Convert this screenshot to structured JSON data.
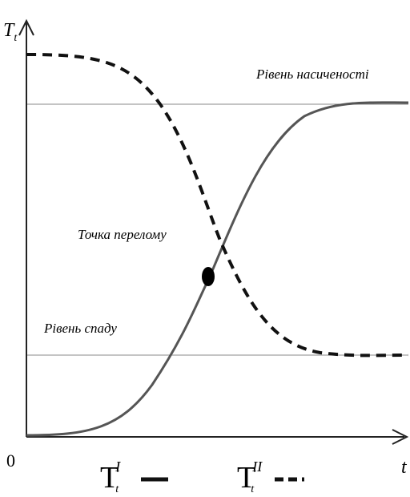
{
  "axes": {
    "y_label": {
      "base": "T",
      "sub": "t"
    },
    "x_label": "t",
    "origin": "0"
  },
  "annotations": {
    "saturation": "Рівень насиченості",
    "inflection": "Точка перелому",
    "decline": "Рівень спаду"
  },
  "legend": [
    {
      "base": "T",
      "sub": "t",
      "sup": "I"
    },
    {
      "base": "T",
      "sub": "t",
      "sup": "II"
    }
  ]
}
